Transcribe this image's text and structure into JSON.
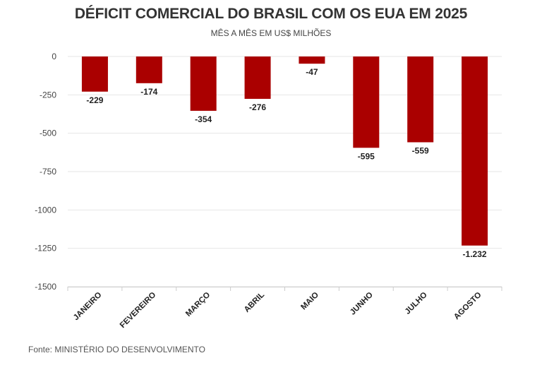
{
  "chart_data": {
    "type": "bar",
    "title": "DÉFICIT COMERCIAL DO BRASIL COM OS EUA EM 2025",
    "subtitle": "MÊS A MÊS EM US$ MILHÕES",
    "categories": [
      "JANEIRO",
      "FEVEREIRO",
      "MARÇO",
      "ABRIL",
      "MAIO",
      "JUNHO",
      "JULHO",
      "AGOSTO"
    ],
    "values": [
      -229,
      -174,
      -354,
      -276,
      -47,
      -595,
      -559,
      -1232
    ],
    "data_labels": [
      "-229",
      "-174",
      "-354",
      "-276",
      "-47",
      "-595",
      "-559",
      "-1.232"
    ],
    "yticks": [
      0,
      -250,
      -500,
      -750,
      -1000,
      -1250,
      -1500
    ],
    "ytick_labels": [
      "0",
      "-250",
      "-500",
      "-750",
      "-1000",
      "-1250",
      "-1500"
    ],
    "ylim": [
      -1500,
      0
    ],
    "xlabel": "",
    "ylabel": "",
    "grid": true,
    "bar_color": "#aa0000",
    "gridline_color": "#e6e6e6"
  },
  "source": "Fonte: MINISTÉRIO DO DESENVOLVIMENTO"
}
